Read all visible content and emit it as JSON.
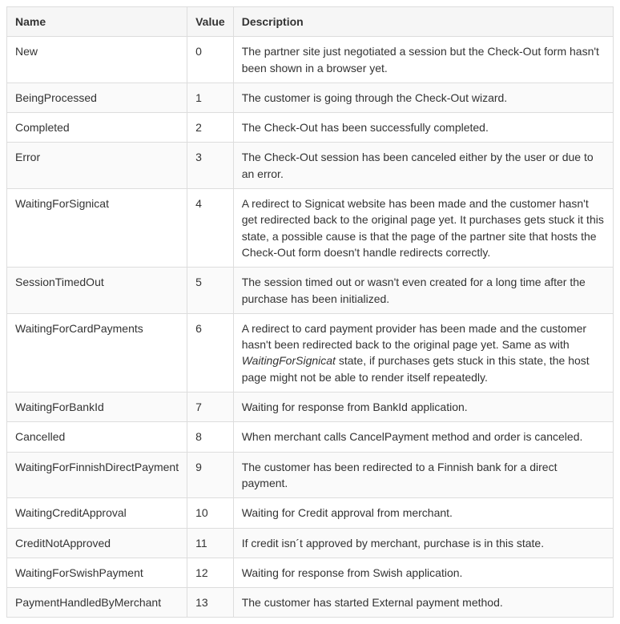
{
  "table": {
    "columns": [
      "Name",
      "Value",
      "Description"
    ],
    "column_widths": [
      "auto",
      "52px",
      "auto"
    ],
    "header_bg": "#f6f6f6",
    "row_bg_odd": "#ffffff",
    "row_bg_even": "#fafafa",
    "border_color": "#dddddd",
    "text_color": "#333333",
    "font_size": 14,
    "rows": [
      {
        "name": "New",
        "value": "0",
        "description": "The partner site just negotiated a session but the Check-Out form hasn't been shown in a browser yet."
      },
      {
        "name": "BeingProcessed",
        "value": "1",
        "description": "The customer is going through the Check-Out wizard."
      },
      {
        "name": "Completed",
        "value": "2",
        "description": "The Check-Out has been successfully completed."
      },
      {
        "name": "Error",
        "value": "3",
        "description": "The Check-Out session has been canceled either by the user or due to an error."
      },
      {
        "name": "WaitingForSignicat",
        "value": "4",
        "description": "A redirect to Signicat website has been made and the customer hasn't get redirected back to the original page yet. It purchases gets stuck it this state, a possible cause is that the page of the partner site that hosts the Check-Out form doesn't handle redirects correctly."
      },
      {
        "name": "SessionTimedOut",
        "value": "5",
        "description": "The session timed out or wasn't even created for a long time after the purchase has been initialized."
      },
      {
        "name": "WaitingForCardPayments",
        "value": "6",
        "description_pre": "A redirect to card payment provider has been made and the customer hasn't been redirected back to the original page yet. Same as with ",
        "description_em": "WaitingForSignicat",
        "description_post": " state, if purchases gets stuck in this state, the host page might not be able to render itself repeatedly."
      },
      {
        "name": "WaitingForBankId",
        "value": "7",
        "description": "Waiting for response from BankId application."
      },
      {
        "name": "Cancelled",
        "value": "8",
        "description": "When merchant calls CancelPayment method and order is canceled."
      },
      {
        "name": "WaitingForFinnishDirectPayment",
        "value": "9",
        "description": "The customer has been redirected to a Finnish bank for a direct payment."
      },
      {
        "name": "WaitingCreditApproval",
        "value": "10",
        "description": "Waiting for Credit approval from merchant."
      },
      {
        "name": "CreditNotApproved",
        "value": "11",
        "description": "If credit isn´t approved by merchant, purchase is in this state."
      },
      {
        "name": "WaitingForSwishPayment",
        "value": "12",
        "description": "Waiting for response from Swish application."
      },
      {
        "name": "PaymentHandledByMerchant",
        "value": "13",
        "description": "The customer has started External payment method."
      }
    ]
  }
}
